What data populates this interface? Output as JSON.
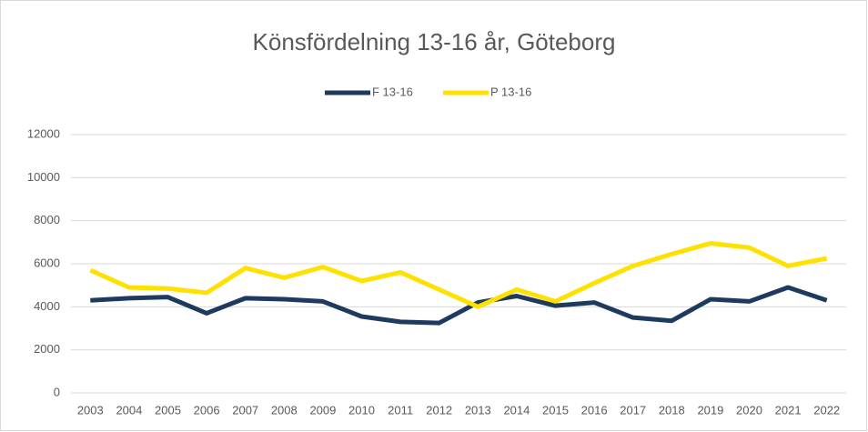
{
  "chart_data": {
    "type": "line",
    "title": "Könsfördelning 13-16 år, Göteborg",
    "categories": [
      "2003",
      "2004",
      "2005",
      "2006",
      "2007",
      "2008",
      "2009",
      "2010",
      "2011",
      "2012",
      "2013",
      "2014",
      "2015",
      "2016",
      "2017",
      "2018",
      "2019",
      "2020",
      "2021",
      "2022"
    ],
    "series": [
      {
        "name": "F 13-16",
        "color": "#1f3a5f",
        "values": [
          4300,
          4400,
          4450,
          3700,
          4400,
          4350,
          4250,
          3550,
          3300,
          3250,
          4200,
          4500,
          4050,
          4200,
          3500,
          3350,
          4350,
          4250,
          4900,
          4300
        ]
      },
      {
        "name": "P 13-16",
        "color": "#ffe100",
        "values": [
          5700,
          4900,
          4850,
          4650,
          5800,
          5350,
          5850,
          5200,
          5600,
          4800,
          4000,
          4800,
          4250,
          5100,
          5900,
          6450,
          6950,
          6750,
          5900,
          6250
        ]
      }
    ],
    "ylim": [
      0,
      12000
    ],
    "yticks": [
      0,
      2000,
      4000,
      6000,
      8000,
      10000,
      12000
    ],
    "grid": true,
    "legend": "top"
  }
}
